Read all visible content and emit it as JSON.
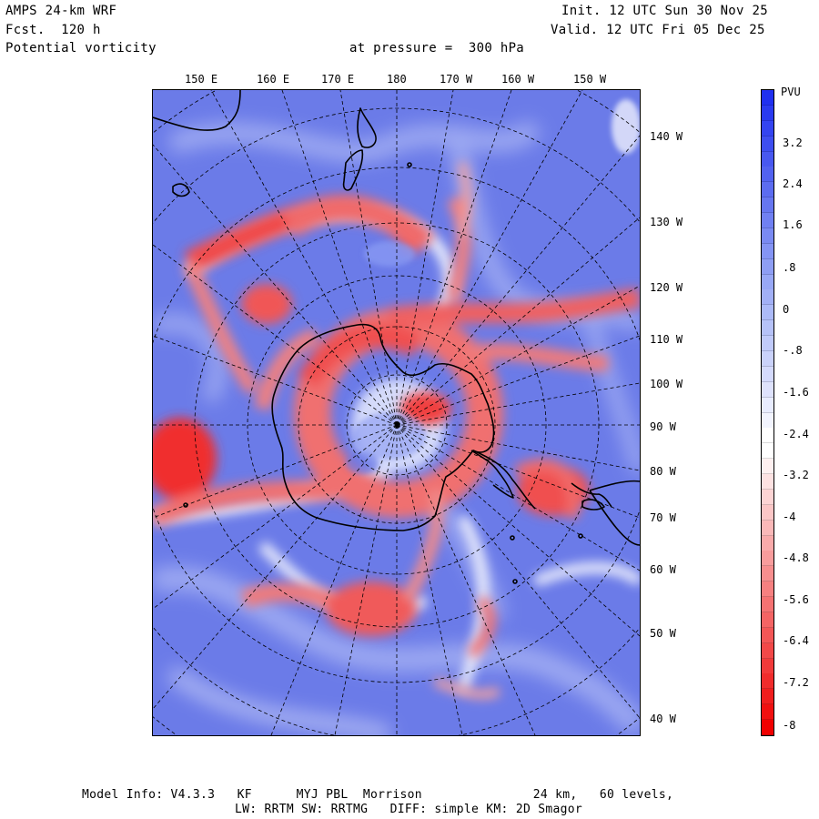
{
  "header": {
    "model_title": "AMPS 24-km WRF",
    "forecast": "Fcst.  120 h",
    "field_name": "Potential vorticity",
    "level": "at pressure =  300 hPa",
    "init_time": "Init. 12 UTC Sun 30 Nov 25",
    "valid_time": "Valid. 12 UTC Fri 05 Dec 25"
  },
  "map": {
    "projection": "polar stereographic (Southern Hemisphere)",
    "top_longitude_labels": [
      "150 E",
      "160 E",
      "170 E",
      "180",
      "170 W",
      "160 W",
      "150 W"
    ],
    "right_longitude_labels": [
      "140 W",
      "130 W",
      "120 W",
      "110 W",
      "100 W",
      "90 W",
      "80 W",
      "70 W",
      "60 W",
      "50 W",
      "40 W"
    ],
    "colors": {
      "positive_pv": "#4b5cf0",
      "neutral": "#ffffff",
      "negative_pv": "#f03030",
      "coastline": "#000000",
      "grid": "#000000"
    }
  },
  "colorbar": {
    "unit": "PVU",
    "tick_labels": [
      "3.2",
      "2.4",
      "1.6",
      ".8",
      "0",
      "-.8",
      "-1.6",
      "-2.4",
      "-3.2",
      "-4",
      "-4.8",
      "-5.6",
      "-6.4",
      "-7.2",
      "-8"
    ],
    "range": [
      -8,
      4
    ],
    "colors_top_to_bottom": [
      "#2030f0",
      "#2a3af0",
      "#3444f0",
      "#3e4ef0",
      "#4858f0",
      "#5262f0",
      "#5c6cf0",
      "#6676f0",
      "#7080f2",
      "#7a8af2",
      "#8494f4",
      "#8e9ef4",
      "#98a8f6",
      "#a2b0f6",
      "#acbaf8",
      "#b6c2f8",
      "#c0cafa",
      "#cad2fa",
      "#d4dafc",
      "#dee2fc",
      "#e8ecfe",
      "#f2f4fe",
      "#ffffff",
      "#ffffff",
      "#fef0f0",
      "#fde2e2",
      "#fcd4d4",
      "#fbc6c6",
      "#fab8b8",
      "#f9aaaa",
      "#f89c9c",
      "#f78e8e",
      "#f68080",
      "#f57272",
      "#f46464",
      "#f35656",
      "#f24848",
      "#f13a3a",
      "#f02c2c",
      "#f01e1e",
      "#f01010",
      "#f00000"
    ]
  },
  "footer": {
    "model_info_line1": "Model Info: V4.3.3   KF      MYJ PBL  Morrison               24 km,   60 levels,",
    "model_info_line2": "LW: RRTM SW: RRTMG   DIFF: simple KM: 2D Smagor"
  }
}
